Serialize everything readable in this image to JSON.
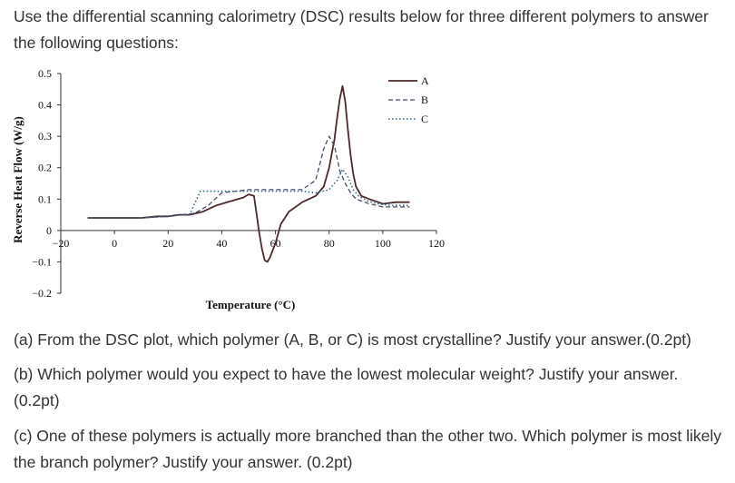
{
  "intro": "Use the differential scanning calorimetry (DSC) results below for three different polymers to answer the following questions:",
  "questions": {
    "a": "(a) From the DSC plot, which polymer (A, B, or C) is most crystalline? Justify your answer.(0.2pt)",
    "b": "(b) Which polymer would you expect to have the lowest molecular weight? Justify your answer. (0.2pt)",
    "c": "(c) One of these polymers is actually more branched than the other two. Which polymer is most likely the branch polymer? Justify your answer. (0.2pt)"
  },
  "chart_data": {
    "type": "line",
    "title": "",
    "xlabel": "Temperature (°C)",
    "ylabel": "Reverse Heat Flow (W/g)",
    "xlim": [
      -20,
      120
    ],
    "ylim": [
      -0.2,
      0.5
    ],
    "xticks": [
      -20,
      0,
      20,
      40,
      60,
      80,
      100,
      120
    ],
    "xtick_labels": [
      "-20",
      "0",
      "20",
      "40",
      "60",
      "80",
      "100",
      "120"
    ],
    "yticks": [
      0.5,
      0.4,
      0.3,
      0.2,
      0.1,
      0,
      -0.1,
      -0.2
    ],
    "ytick_labels": [
      "0.5",
      "0.4",
      "0.3",
      "0.2",
      "0.1",
      "0",
      "-0.1",
      "-0.2"
    ],
    "grid": false,
    "legend_position": "top-right",
    "series": [
      {
        "name": "A",
        "style": "solid",
        "color": "#4a2a2a",
        "x": [
          -10,
          0,
          10,
          16,
          20,
          24,
          28,
          33,
          38,
          42,
          46,
          48,
          50,
          52,
          53,
          54,
          55,
          56,
          57,
          58,
          60,
          62,
          65,
          70,
          75,
          78,
          80,
          82,
          83,
          84,
          85,
          86,
          87,
          88,
          89,
          90,
          92,
          95,
          100,
          105,
          110
        ],
        "y": [
          0.04,
          0.04,
          0.04,
          0.045,
          0.045,
          0.05,
          0.05,
          0.06,
          0.08,
          0.09,
          0.1,
          0.105,
          0.115,
          0.11,
          0.05,
          -0.01,
          -0.06,
          -0.095,
          -0.1,
          -0.085,
          -0.04,
          0.02,
          0.06,
          0.09,
          0.11,
          0.14,
          0.2,
          0.29,
          0.36,
          0.42,
          0.46,
          0.41,
          0.32,
          0.24,
          0.18,
          0.14,
          0.11,
          0.1,
          0.085,
          0.09,
          0.09
        ]
      },
      {
        "name": "B",
        "style": "dashed",
        "color": "#4a4a66",
        "x": [
          -10,
          10,
          20,
          25,
          30,
          35,
          40,
          45,
          50,
          55,
          60,
          65,
          70,
          75,
          78,
          80,
          82,
          84,
          86,
          88,
          90,
          95,
          100,
          105,
          110
        ],
        "y": [
          0.04,
          0.04,
          0.045,
          0.05,
          0.055,
          0.08,
          0.12,
          0.125,
          0.13,
          0.13,
          0.13,
          0.13,
          0.13,
          0.16,
          0.26,
          0.3,
          0.27,
          0.19,
          0.15,
          0.12,
          0.1,
          0.085,
          0.075,
          0.075,
          0.075
        ]
      },
      {
        "name": "C",
        "style": "dotted",
        "color": "#2f5f7a",
        "x": [
          -10,
          10,
          20,
          25,
          28,
          32,
          40,
          50,
          60,
          70,
          75,
          80,
          83,
          85,
          87,
          89,
          91,
          94,
          98,
          103,
          110
        ],
        "y": [
          0.04,
          0.04,
          0.045,
          0.05,
          0.05,
          0.125,
          0.125,
          0.125,
          0.125,
          0.125,
          0.12,
          0.13,
          0.16,
          0.195,
          0.17,
          0.13,
          0.11,
          0.095,
          0.085,
          0.08,
          0.08
        ]
      }
    ]
  }
}
